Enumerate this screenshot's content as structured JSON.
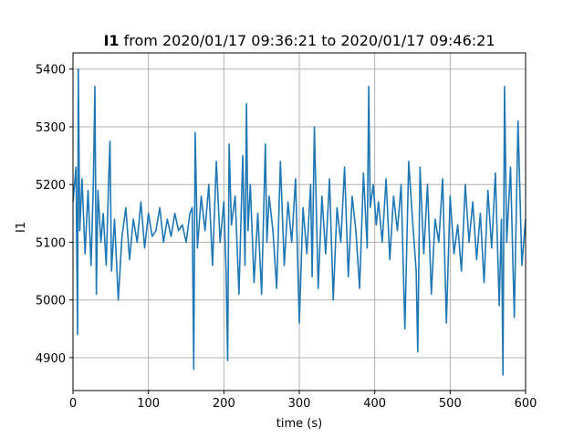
{
  "chart_data": {
    "type": "line",
    "title": {
      "bold": "I1",
      "rest": " from 2020/01/17 09:36:21 to 2020/01/17 09:46:21"
    },
    "xlabel": "time (s)",
    "ylabel": "I1",
    "xlim": [
      0,
      600
    ],
    "ylim": [
      4843,
      5428
    ],
    "xticks": [
      0,
      100,
      200,
      300,
      400,
      500,
      600
    ],
    "yticks": [
      4900,
      5000,
      5100,
      5200,
      5300,
      5400
    ],
    "grid": true,
    "legend": "none",
    "series": [
      {
        "color": "#1f77b4",
        "x": [
          0,
          4,
          6,
          7,
          9,
          12,
          16,
          20,
          24,
          27,
          29,
          31,
          33,
          37,
          40,
          44,
          47,
          49,
          51,
          55,
          60,
          65,
          70,
          75,
          80,
          85,
          90,
          95,
          100,
          105,
          110,
          115,
          120,
          125,
          130,
          135,
          140,
          145,
          150,
          155,
          158,
          160,
          162,
          165,
          170,
          175,
          180,
          185,
          190,
          195,
          200,
          203,
          205,
          207,
          210,
          215,
          220,
          225,
          228,
          230,
          232,
          235,
          240,
          245,
          250,
          255,
          257,
          260,
          265,
          270,
          275,
          280,
          285,
          290,
          295,
          300,
          305,
          310,
          315,
          317,
          320,
          325,
          330,
          335,
          340,
          345,
          350,
          355,
          360,
          365,
          370,
          375,
          380,
          385,
          390,
          392,
          394,
          398,
          402,
          405,
          410,
          415,
          420,
          425,
          430,
          435,
          440,
          445,
          450,
          455,
          457,
          460,
          465,
          470,
          475,
          480,
          485,
          490,
          495,
          500,
          505,
          510,
          515,
          520,
          525,
          530,
          535,
          540,
          545,
          550,
          555,
          560,
          565,
          568,
          570,
          572,
          575,
          580,
          585,
          590,
          595,
          600
        ],
        "y": [
          5170,
          5230,
          4940,
          5400,
          5120,
          5210,
          5080,
          5190,
          5060,
          5200,
          5370,
          5010,
          5190,
          5100,
          5150,
          5060,
          5200,
          5275,
          5050,
          5140,
          5000,
          5110,
          5160,
          5070,
          5140,
          5100,
          5170,
          5090,
          5150,
          5110,
          5120,
          5160,
          5100,
          5140,
          5110,
          5150,
          5120,
          5130,
          5100,
          5150,
          5160,
          4880,
          5290,
          5090,
          5180,
          5120,
          5200,
          5060,
          5240,
          5100,
          5170,
          5050,
          4895,
          5270,
          5130,
          5180,
          5010,
          5250,
          5060,
          5340,
          5120,
          5200,
          5030,
          5150,
          5010,
          5270,
          5100,
          5180,
          5120,
          5020,
          5240,
          5060,
          5170,
          5100,
          5210,
          4960,
          5160,
          5080,
          5200,
          5040,
          5300,
          5020,
          5180,
          5080,
          5210,
          5000,
          5160,
          5100,
          5230,
          5040,
          5180,
          5120,
          5020,
          5220,
          5090,
          5370,
          5160,
          5200,
          5130,
          5170,
          5100,
          5210,
          5070,
          5180,
          5120,
          5200,
          4950,
          5240,
          5140,
          5050,
          4910,
          5230,
          5080,
          5200,
          5010,
          5140,
          5100,
          5210,
          4960,
          5180,
          5080,
          5130,
          5050,
          5200,
          5100,
          5170,
          5070,
          5150,
          5030,
          5190,
          5090,
          5220,
          4990,
          5140,
          4870,
          5370,
          5100,
          5230,
          4970,
          5310,
          5060,
          5140
        ]
      }
    ]
  }
}
